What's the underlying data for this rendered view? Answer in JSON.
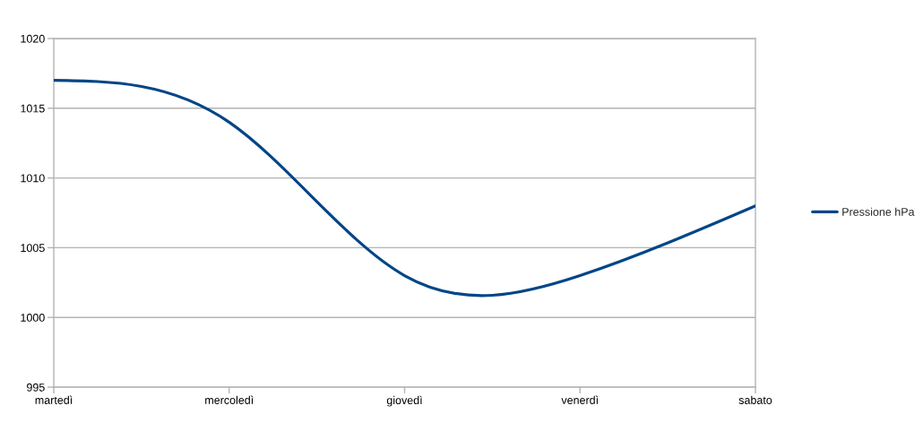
{
  "chart_data": {
    "type": "line",
    "categories": [
      "martedì",
      "mercoledì",
      "giovedì",
      "venerdì",
      "sabato"
    ],
    "series": [
      {
        "name": "Pressione hPa",
        "color": "#004586",
        "values": [
          1017,
          1014,
          1003,
          1003,
          1008
        ]
      }
    ],
    "ylim": [
      995,
      1020
    ],
    "yticks": [
      995,
      1000,
      1005,
      1010,
      1015,
      1020
    ],
    "grid": "y",
    "legend": "right"
  }
}
